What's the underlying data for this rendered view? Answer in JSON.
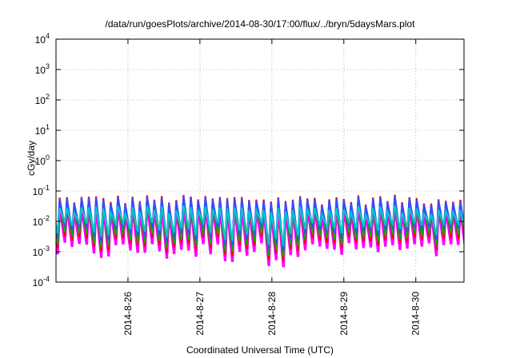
{
  "chart_data": {
    "type": "area",
    "title": "/data/run/goesPlots/archive/2014-08-30/17:00/flux/../bryn/5daysMars.plot",
    "xlabel": "Coordinated Universal Time (UTC)",
    "ylabel": "cGy/day",
    "yscale": "log",
    "ylim": [
      0.0001,
      10000
    ],
    "xlim": [
      0,
      5.67
    ],
    "grid": true,
    "legend": "none",
    "y_ticks": [
      {
        "value": 0.0001,
        "base": "10",
        "exp": "-4"
      },
      {
        "value": 0.001,
        "base": "10",
        "exp": "-3"
      },
      {
        "value": 0.01,
        "base": "10",
        "exp": "-2"
      },
      {
        "value": 0.1,
        "base": "10",
        "exp": "-1"
      },
      {
        "value": 1,
        "base": "10",
        "exp": "0"
      },
      {
        "value": 10,
        "base": "10",
        "exp": "1"
      },
      {
        "value": 100,
        "base": "10",
        "exp": "2"
      },
      {
        "value": 1000,
        "base": "10",
        "exp": "3"
      },
      {
        "value": 10000,
        "base": "10",
        "exp": "4"
      }
    ],
    "x_ticks": [
      {
        "value": 1,
        "label": "2014-8-26"
      },
      {
        "value": 2,
        "label": "2014-8-27"
      },
      {
        "value": 3,
        "label": "2014-8-28"
      },
      {
        "value": 4,
        "label": "2014-8-29"
      },
      {
        "value": 5,
        "label": "2014-8-30"
      }
    ],
    "oscillation": {
      "cycles": 56,
      "peak_range": [
        0.035,
        0.075
      ],
      "trough_range": [
        0.0003,
        0.002
      ]
    },
    "series": [
      {
        "color": "#ff00ff",
        "peak_factor": 0.55,
        "trough_factor": 1.0
      },
      {
        "color": "#ff0000",
        "peak_factor": 1.0,
        "trough_factor": 1.6
      },
      {
        "color": "#00b000",
        "peak_factor": 0.75,
        "trough_factor": 2.2
      },
      {
        "color": "#3050ff",
        "peak_factor": 0.9,
        "trough_factor": 3.5
      },
      {
        "color": "#00c8c8",
        "peak_factor": 0.45,
        "trough_factor": 5.0
      }
    ]
  }
}
